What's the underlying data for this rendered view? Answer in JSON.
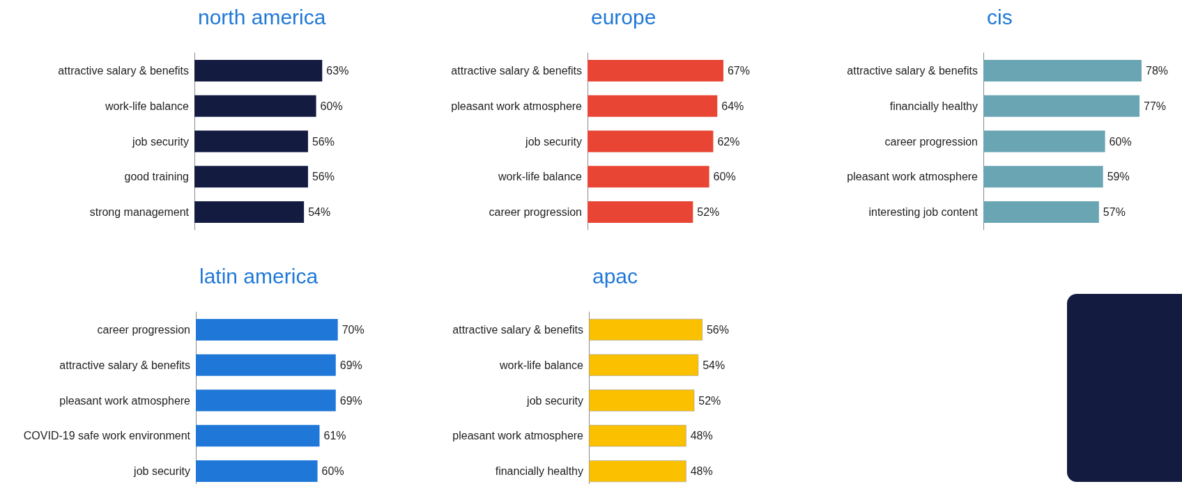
{
  "chart_data": [
    {
      "type": "bar",
      "orientation": "horizontal",
      "title": "north america",
      "categories": [
        "attractive salary & benefits",
        "work-life balance",
        "job security",
        "good training",
        "strong management"
      ],
      "values": [
        63,
        60,
        56,
        56,
        54
      ],
      "value_labels": [
        "63%",
        "60%",
        "56%",
        "56%",
        "54%"
      ],
      "color": "#141b41"
    },
    {
      "type": "bar",
      "orientation": "horizontal",
      "title": "europe",
      "categories": [
        "attractive salary & benefits",
        "pleasant work atmosphere",
        "job security",
        "work-life balance",
        "career progression"
      ],
      "values": [
        67,
        64,
        62,
        60,
        52
      ],
      "value_labels": [
        "67%",
        "64%",
        "62%",
        "60%",
        "52%"
      ],
      "color": "#e84535"
    },
    {
      "type": "bar",
      "orientation": "horizontal",
      "title": "cis",
      "categories": [
        "attractive salary & benefits",
        "financially healthy",
        "career progression",
        "pleasant work atmosphere",
        "interesting job content"
      ],
      "values": [
        78,
        77,
        60,
        59,
        57
      ],
      "value_labels": [
        "78%",
        "77%",
        "60%",
        "59%",
        "57%"
      ],
      "color": "#6aa5b3"
    },
    {
      "type": "bar",
      "orientation": "horizontal",
      "title": "latin america",
      "categories": [
        "career progression",
        "attractive salary & benefits",
        "pleasant work atmosphere",
        "COVID-19 safe work environment",
        "job security"
      ],
      "values": [
        70,
        69,
        69,
        61,
        60
      ],
      "value_labels": [
        "70%",
        "69%",
        "69%",
        "61%",
        "60%"
      ],
      "color": "#1f78d8"
    },
    {
      "type": "bar",
      "orientation": "horizontal",
      "title": "apac",
      "categories": [
        "attractive salary & benefits",
        "work-life balance",
        "job security",
        "pleasant work atmosphere",
        "financially healthy"
      ],
      "values": [
        56,
        54,
        52,
        48,
        48
      ],
      "value_labels": [
        "56%",
        "54%",
        "52%",
        "48%",
        "48%"
      ],
      "color": "#fbc100"
    }
  ]
}
